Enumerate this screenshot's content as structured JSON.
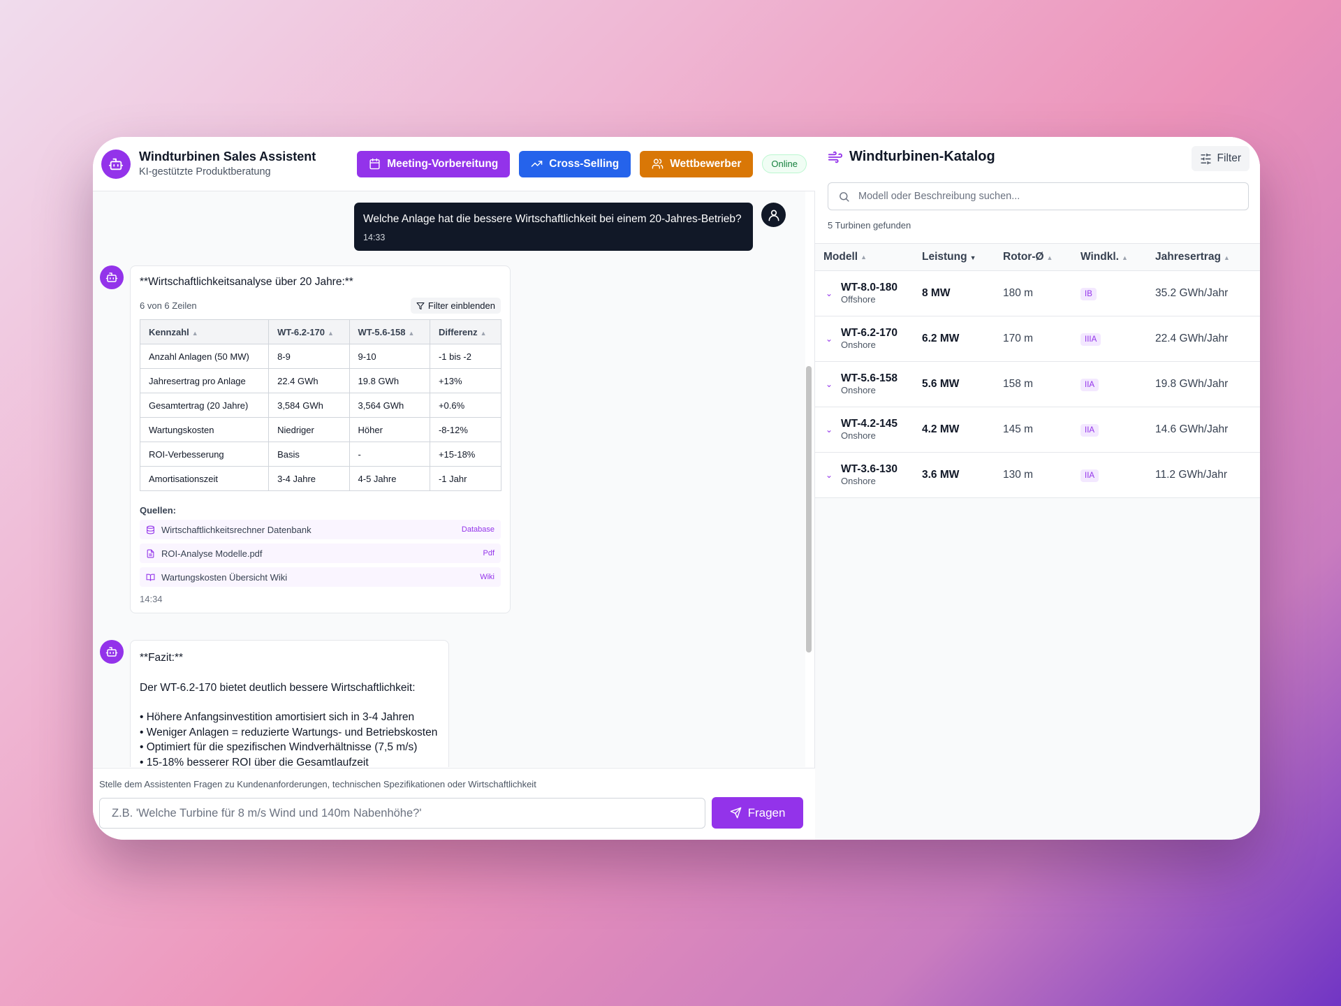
{
  "header": {
    "title": "Windturbinen Sales Assistent",
    "subtitle": "KI-gestützte Produktberatung",
    "buttons": {
      "meeting": "Meeting-Vorbereitung",
      "cross": "Cross-Selling",
      "competitor": "Wettbewerber"
    },
    "status": "Online"
  },
  "chat": {
    "user_message": {
      "text": "Welche Anlage hat die bessere Wirtschaftlichkeit bei einem 20-Jahres-Betrieb?",
      "time": "14:33"
    },
    "analysis": {
      "heading": "**Wirtschaftlichkeitsanalyse über 20 Jahre:**",
      "row_count": "6 von 6 Zeilen",
      "filter_label": "Filter einblenden",
      "columns": [
        "Kennzahl",
        "WT-6.2-170",
        "WT-5.6-158",
        "Differenz"
      ],
      "rows": [
        [
          "Anzahl Anlagen (50 MW)",
          "8-9",
          "9-10",
          "-1 bis -2"
        ],
        [
          "Jahresertrag pro Anlage",
          "22.4 GWh",
          "19.8 GWh",
          "+13%"
        ],
        [
          "Gesamtertrag (20 Jahre)",
          "3,584 GWh",
          "3,564 GWh",
          "+0.6%"
        ],
        [
          "Wartungskosten",
          "Niedriger",
          "Höher",
          "-8-12%"
        ],
        [
          "ROI-Verbesserung",
          "Basis",
          "-",
          "+15-18%"
        ],
        [
          "Amortisationszeit",
          "3-4 Jahre",
          "4-5 Jahre",
          "-1 Jahr"
        ]
      ],
      "sources_title": "Quellen:",
      "sources": [
        {
          "name": "Wirtschaftlichkeitsrechner Datenbank",
          "type": "Database",
          "icon": "database-icon"
        },
        {
          "name": "ROI-Analyse Modelle.pdf",
          "type": "Pdf",
          "icon": "file-icon"
        },
        {
          "name": "Wartungskosten Übersicht Wiki",
          "type": "Wiki",
          "icon": "book-icon"
        }
      ],
      "time": "14:34"
    },
    "conclusion": {
      "heading": "**Fazit:**",
      "intro": "Der WT-6.2-170 bietet deutlich bessere Wirtschaftlichkeit:",
      "bullets": [
        "• Höhere Anfangsinvestition amortisiert sich in 3-4 Jahren",
        "• Weniger Anlagen = reduzierte Wartungs- und Betriebskosten",
        "• Optimiert für die spezifischen Windverhältnisse (7,5 m/s)",
        "• 15-18% besserer ROI über die Gesamtlaufzeit"
      ]
    }
  },
  "input": {
    "hint": "Stelle dem Assistenten Fragen zu Kundenanforderungen, technischen Spezifikationen oder Wirtschaftlichkeit",
    "placeholder": "Z.B. 'Welche Turbine für 8 m/s Wind und 140m Nabenhöhe?'",
    "submit": "Fragen"
  },
  "catalog": {
    "title": "Windturbinen-Katalog",
    "filter": "Filter",
    "search_placeholder": "Modell oder Beschreibung suchen...",
    "found": "5 Turbinen gefunden",
    "columns": [
      "Modell",
      "Leistung",
      "Rotor-Ø",
      "Windkl.",
      "Jahresertrag"
    ],
    "rows": [
      {
        "model": "WT-8.0-180",
        "type": "Offshore",
        "power": "8 MW",
        "rotor": "180 m",
        "wind_class": "IB",
        "yield": "35.2 GWh/Jahr"
      },
      {
        "model": "WT-6.2-170",
        "type": "Onshore",
        "power": "6.2 MW",
        "rotor": "170 m",
        "wind_class": "IIIA",
        "yield": "22.4 GWh/Jahr"
      },
      {
        "model": "WT-5.6-158",
        "type": "Onshore",
        "power": "5.6 MW",
        "rotor": "158 m",
        "wind_class": "IIA",
        "yield": "19.8 GWh/Jahr"
      },
      {
        "model": "WT-4.2-145",
        "type": "Onshore",
        "power": "4.2 MW",
        "rotor": "145 m",
        "wind_class": "IIA",
        "yield": "14.6 GWh/Jahr"
      },
      {
        "model": "WT-3.6-130",
        "type": "Onshore",
        "power": "3.6 MW",
        "rotor": "130 m",
        "wind_class": "IIA",
        "yield": "11.2 GWh/Jahr"
      }
    ]
  },
  "colors": {
    "accent_purple": "#9333ea",
    "accent_blue": "#2563eb",
    "accent_orange": "#d97706",
    "user_bubble": "#111827"
  }
}
